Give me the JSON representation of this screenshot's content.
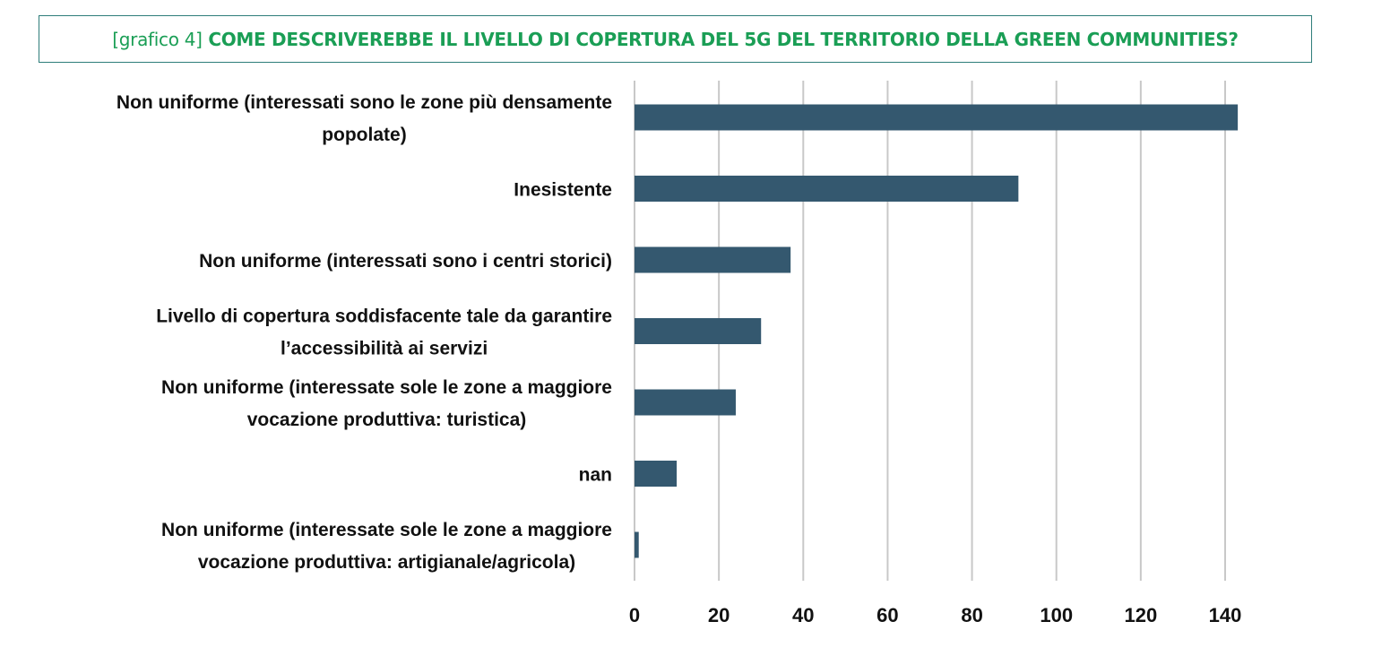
{
  "header": {
    "title_prefix": "[grafico 4]",
    "title_main": "COME DESCRIVEREBBE IL LIVELLO DI COPERTURA DEL 5G DEL TERRITORIO DELLA GREEN COMMUNITIES?"
  },
  "colors": {
    "bar": "#34586f",
    "grid": "#c8c8c8",
    "title": "#1a9e55",
    "title_border": "#2e7d7a"
  },
  "chart_data": {
    "type": "bar",
    "orientation": "horizontal",
    "categories": [
      [
        "Non uniforme (interessati sono le zone più densamente",
        "popolate)"
      ],
      [
        "Inesistente"
      ],
      [
        "Non uniforme (interessati sono i centri storici)"
      ],
      [
        "Livello di copertura soddisfacente tale da garantire",
        "l’accessibilità ai servizi"
      ],
      [
        "Non uniforme (interessate sole le zone a maggiore",
        "vocazione produttiva: turistica)"
      ],
      [
        "nan"
      ],
      [
        "Non uniforme (interessate sole le zone a maggiore",
        "vocazione produttiva: artigianale/agricola)"
      ]
    ],
    "values": [
      143,
      91,
      37,
      30,
      24,
      10,
      1
    ],
    "xlim": [
      0,
      140
    ],
    "xticks": [
      0,
      20,
      40,
      60,
      80,
      100,
      120,
      140
    ],
    "grid": true,
    "legend": "none"
  }
}
